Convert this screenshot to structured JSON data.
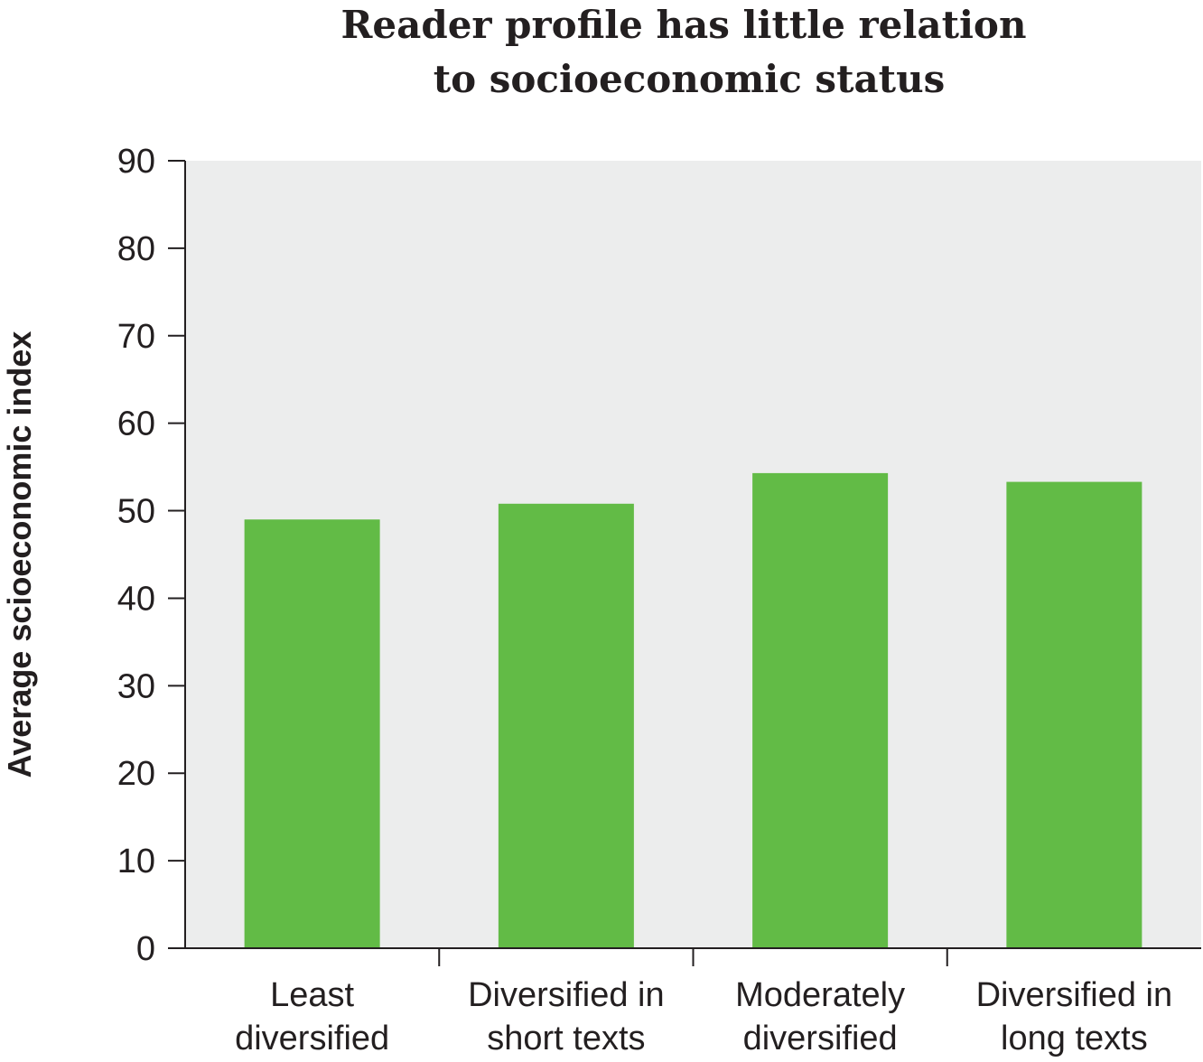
{
  "chart_data": {
    "type": "bar",
    "title": [
      "Reader profile has little relation",
      "to socioeconomic status"
    ],
    "ylabel": "Average scioeconomic index",
    "xlabel": "",
    "categories": [
      [
        "Least",
        "diversified"
      ],
      [
        "Diversified in",
        "short texts"
      ],
      [
        "Moderately",
        "diversified"
      ],
      [
        "Diversified in",
        "long texts"
      ]
    ],
    "values": [
      49,
      50.8,
      54.3,
      53.3
    ],
    "ylim": [
      0,
      90
    ],
    "yticks": [
      0,
      10,
      20,
      30,
      40,
      50,
      60,
      70,
      80,
      90
    ],
    "grid": false,
    "colors": {
      "bar": "#62bb46",
      "plot_background": "#eceded",
      "axis": "#231f20",
      "text": "#231f20"
    }
  }
}
